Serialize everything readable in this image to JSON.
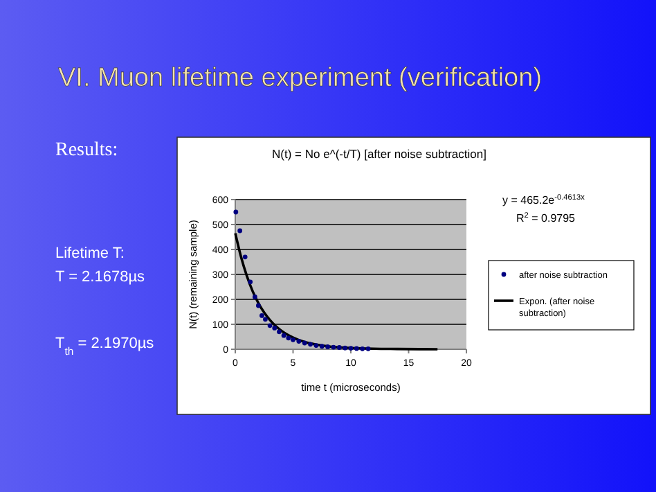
{
  "chart_data": {
    "type": "scatter",
    "title": "VI. Muon lifetime experiment (verification)",
    "subtitle": "N(t) = No e^(-t/T) [after noise subtraction]",
    "xlabel": "time t (microseconds)",
    "ylabel": "N(t) (remaining sample)",
    "xlim": [
      0,
      20
    ],
    "ylim": [
      0,
      600
    ],
    "xticks": [
      0,
      5,
      10,
      15,
      20
    ],
    "yticks": [
      0,
      100,
      200,
      300,
      400,
      500,
      600
    ],
    "grid": "y",
    "legend": "right",
    "series": [
      {
        "name": "after noise subtraction",
        "marker": "circle",
        "color": "#000080",
        "x": [
          0.05,
          0.4,
          0.85,
          1.3,
          1.7,
          2.0,
          2.3,
          2.6,
          3.0,
          3.4,
          3.8,
          4.2,
          4.6,
          5.0,
          5.5,
          6.0,
          6.5,
          7.0,
          7.5,
          8.0,
          8.5,
          9.0,
          9.5,
          10.0,
          10.5,
          11.0,
          11.5
        ],
        "values": [
          550,
          475,
          370,
          270,
          210,
          175,
          135,
          120,
          95,
          85,
          70,
          55,
          45,
          38,
          32,
          25,
          20,
          15,
          12,
          10,
          8,
          7,
          5,
          4,
          3,
          2,
          2
        ]
      },
      {
        "name": "Expon. (after noise subtraction)",
        "type": "line",
        "marker": "none",
        "color": "#000000",
        "x": [
          0,
          0.5,
          1,
          1.5,
          2,
          2.5,
          3,
          3.5,
          4,
          4.5,
          5,
          6,
          7,
          8,
          10,
          12,
          14,
          17.5
        ],
        "values": [
          465,
          370,
          294,
          233,
          185,
          147,
          117,
          93,
          74,
          59,
          47,
          29,
          19,
          12,
          5,
          2,
          1,
          0
        ]
      }
    ],
    "annotations": [
      "Results:",
      "Lifetime T:",
      "T = 2.1678µs",
      "T$_{th}$ = 2.1970µs",
      "y = 465.2e$^{-0.4613x}$",
      "R$^{2}$ = 0.9795"
    ]
  }
}
